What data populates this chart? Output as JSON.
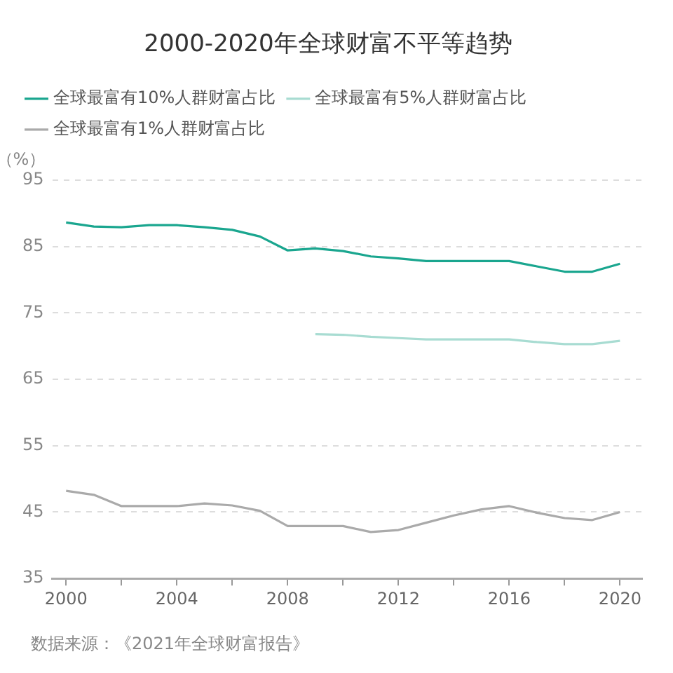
{
  "chart_data": {
    "type": "line",
    "title": "2000-2020年全球财富不平等趋势",
    "ylabel": "（%）",
    "x": [
      2000,
      2001,
      2002,
      2003,
      2004,
      2005,
      2006,
      2007,
      2008,
      2009,
      2010,
      2011,
      2012,
      2013,
      2014,
      2015,
      2016,
      2017,
      2018,
      2019,
      2020
    ],
    "series": [
      {
        "name": "全球最富有10%人群财富占比",
        "color": "#1aa68f",
        "values": [
          88.6,
          88.0,
          87.9,
          88.2,
          88.2,
          87.9,
          87.5,
          86.5,
          84.4,
          84.7,
          84.3,
          83.5,
          83.2,
          82.8,
          82.8,
          82.8,
          82.8,
          82.0,
          81.2,
          81.2,
          82.4
        ]
      },
      {
        "name": "全球最富有5%人群财富占比",
        "color": "#a8dcd2",
        "values": [
          null,
          null,
          null,
          null,
          null,
          null,
          null,
          null,
          null,
          71.8,
          71.7,
          71.4,
          71.2,
          71.0,
          71.0,
          71.0,
          71.0,
          70.6,
          70.3,
          70.3,
          70.8
        ]
      },
      {
        "name": "全球最富有1%人群财富占比",
        "color": "#aaaaaa",
        "values": [
          48.2,
          47.6,
          45.9,
          45.9,
          45.9,
          46.3,
          46.0,
          45.2,
          42.9,
          42.9,
          42.9,
          42.0,
          42.3,
          43.4,
          44.5,
          45.4,
          45.9,
          44.9,
          44.1,
          43.8,
          45.0
        ]
      }
    ],
    "xlim": [
      1999.5,
      2020.8
    ],
    "xticks": [
      2000,
      {
        "value": 2002,
        "label": null
      },
      2004,
      {
        "value": 2006,
        "label": null
      },
      2008,
      {
        "value": 2010,
        "label": null
      },
      2012,
      {
        "value": 2014,
        "label": null
      },
      2016,
      {
        "value": 2018,
        "label": null
      },
      2020
    ],
    "ylim": [
      35,
      95
    ],
    "yticks": [
      35,
      45,
      55,
      65,
      75,
      85,
      95
    ],
    "grid": "y",
    "legend": "top",
    "marker": "none",
    "line_style": "solid",
    "annotations": [
      "数据来源：《2021年全球财富报告》"
    ]
  }
}
